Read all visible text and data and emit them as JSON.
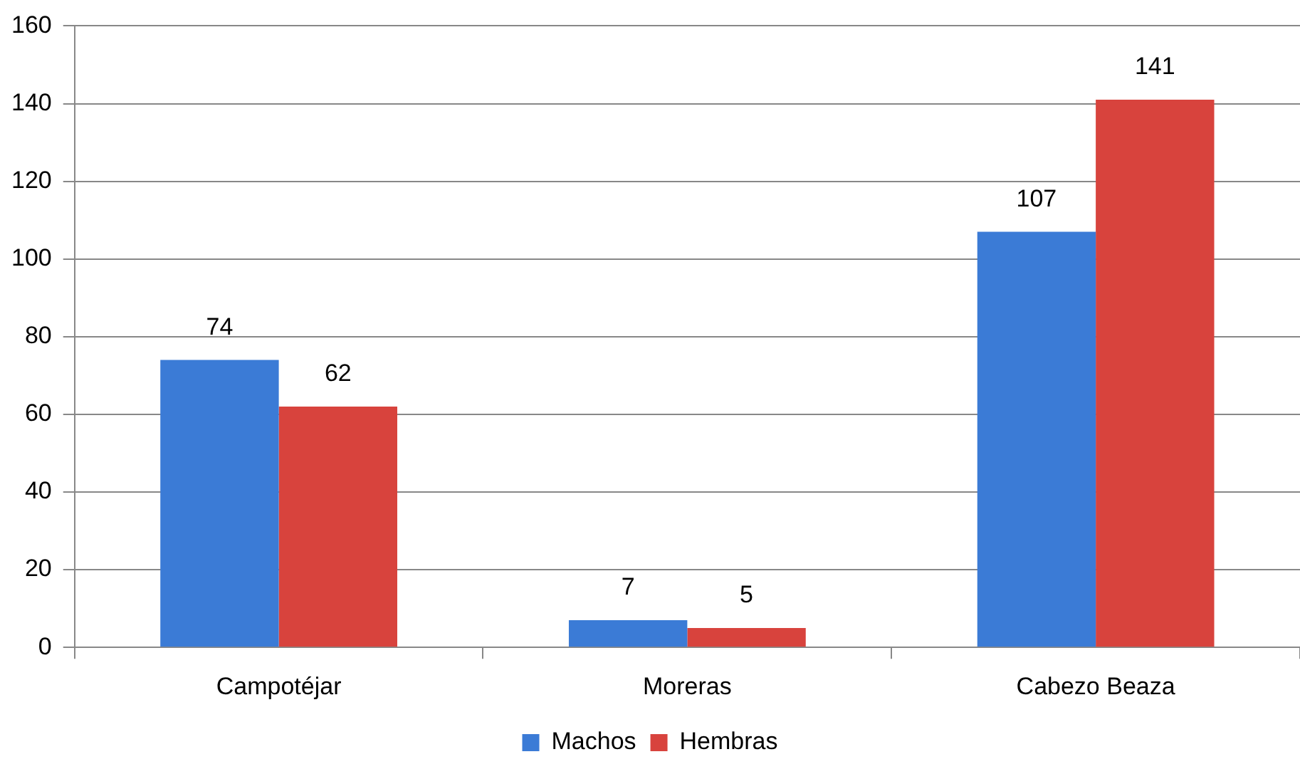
{
  "chart_data": {
    "type": "bar",
    "categories": [
      "Campotéjar",
      "Moreras",
      "Cabezo Beaza"
    ],
    "series": [
      {
        "name": "Machos",
        "color": "#3b7bd6",
        "values": [
          74,
          7,
          107
        ]
      },
      {
        "name": "Hembras",
        "color": "#d8433d",
        "values": [
          62,
          5,
          141
        ]
      }
    ],
    "ylim": [
      0,
      160
    ],
    "yticks": [
      0,
      20,
      40,
      60,
      80,
      100,
      120,
      140,
      160
    ],
    "grid": "y",
    "legend": "bottom",
    "data_labels": true
  }
}
